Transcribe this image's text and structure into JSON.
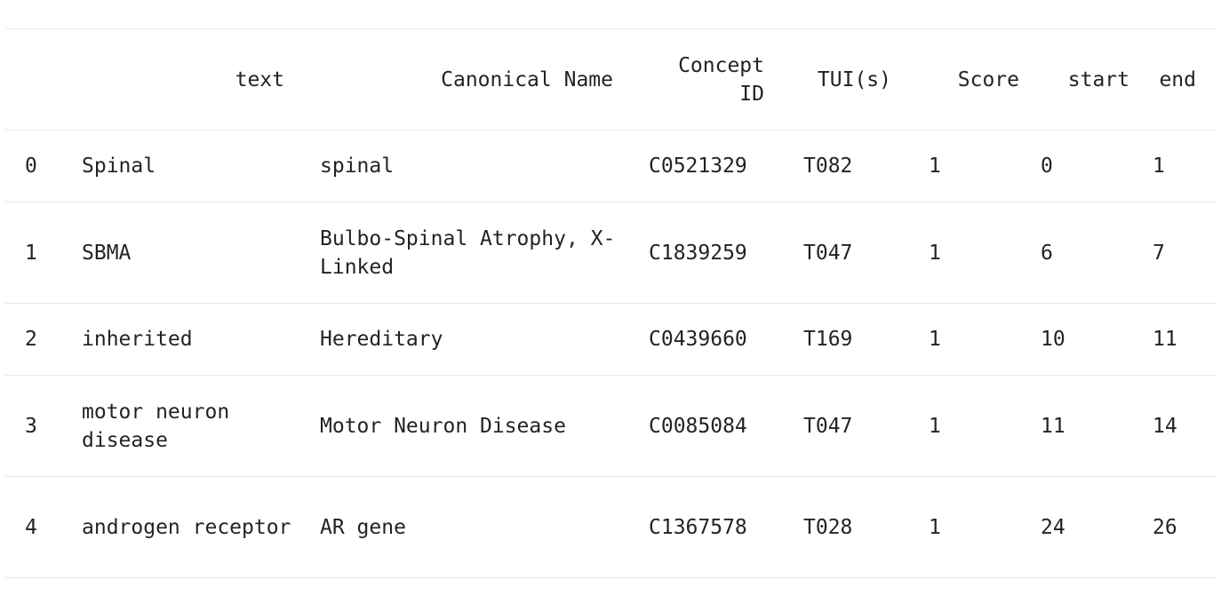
{
  "table": {
    "headers": {
      "index": "",
      "text": "text",
      "canonical_name": "Canonical Name",
      "concept_id_line1": "Concept",
      "concept_id_line2": "ID",
      "tuis": "TUI(s)",
      "score": "Score",
      "start": "start",
      "end": "end"
    },
    "rows": [
      {
        "index": "0",
        "text": "Spinal",
        "canonical_name": "spinal",
        "concept_id": "C0521329",
        "tuis": "T082",
        "score": "1",
        "start": "0",
        "end": "1"
      },
      {
        "index": "1",
        "text": "SBMA",
        "canonical_name": "Bulbo-Spinal Atrophy, X-Linked",
        "concept_id": "C1839259",
        "tuis": "T047",
        "score": "1",
        "start": "6",
        "end": "7"
      },
      {
        "index": "2",
        "text": "inherited",
        "canonical_name": "Hereditary",
        "concept_id": "C0439660",
        "tuis": "T169",
        "score": "1",
        "start": "10",
        "end": "11"
      },
      {
        "index": "3",
        "text": "motor neuron disease",
        "canonical_name": "Motor Neuron Disease",
        "concept_id": "C0085084",
        "tuis": "T047",
        "score": "1",
        "start": "11",
        "end": "14"
      },
      {
        "index": "4",
        "text": "androgen receptor",
        "canonical_name": "AR gene",
        "concept_id": "C1367578",
        "tuis": "T028",
        "score": "1",
        "start": "24",
        "end": "26"
      }
    ]
  }
}
